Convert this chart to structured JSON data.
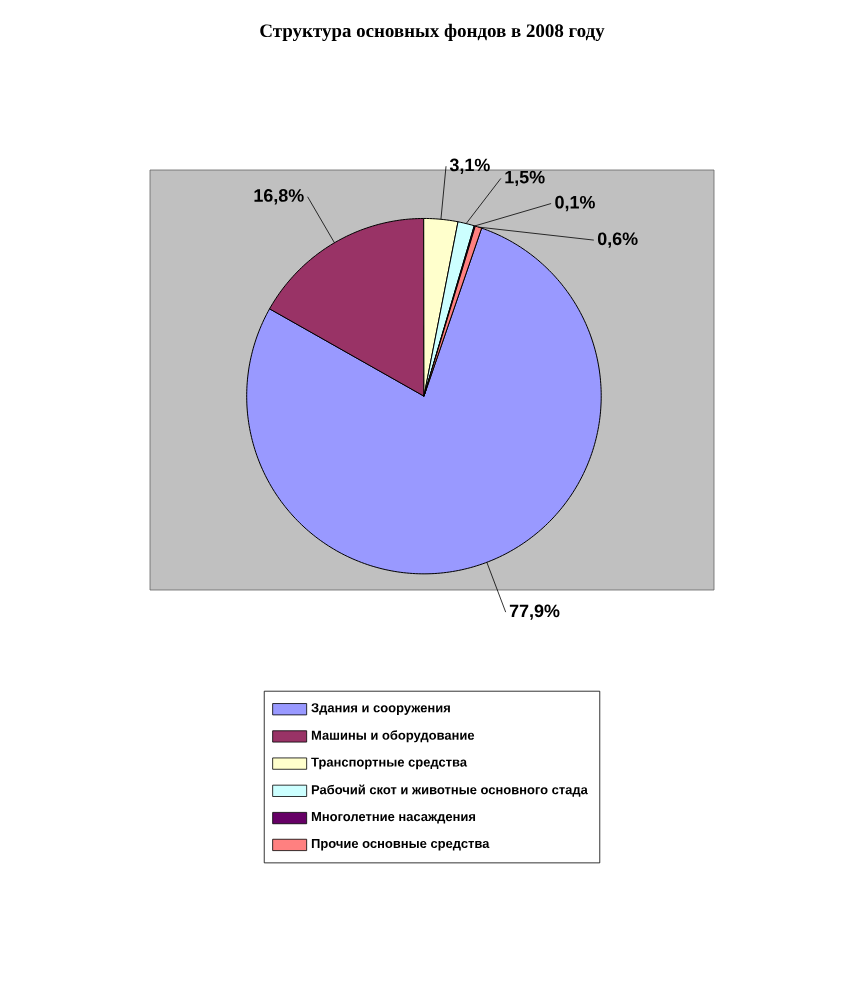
{
  "chart_data": {
    "type": "pie",
    "title": "Структура основных фондов в 2008 году",
    "categories": [
      "Здания и сооружения",
      "Машины и оборудование",
      "Транспортные средства",
      "Рабочий скот и животные основного стада",
      "Многолетние насаждения",
      "Прочие основные средства"
    ],
    "values": [
      77.9,
      16.8,
      3.1,
      1.5,
      0.1,
      0.6
    ],
    "value_labels": [
      "77,9%",
      "16,8%",
      "3,1%",
      "1,5%",
      "0,1%",
      "0,6%"
    ],
    "colors": [
      "#9999ff",
      "#993366",
      "#ffffcc",
      "#ccffff",
      "#660066",
      "#ff8080"
    ],
    "legend": "bottom"
  }
}
